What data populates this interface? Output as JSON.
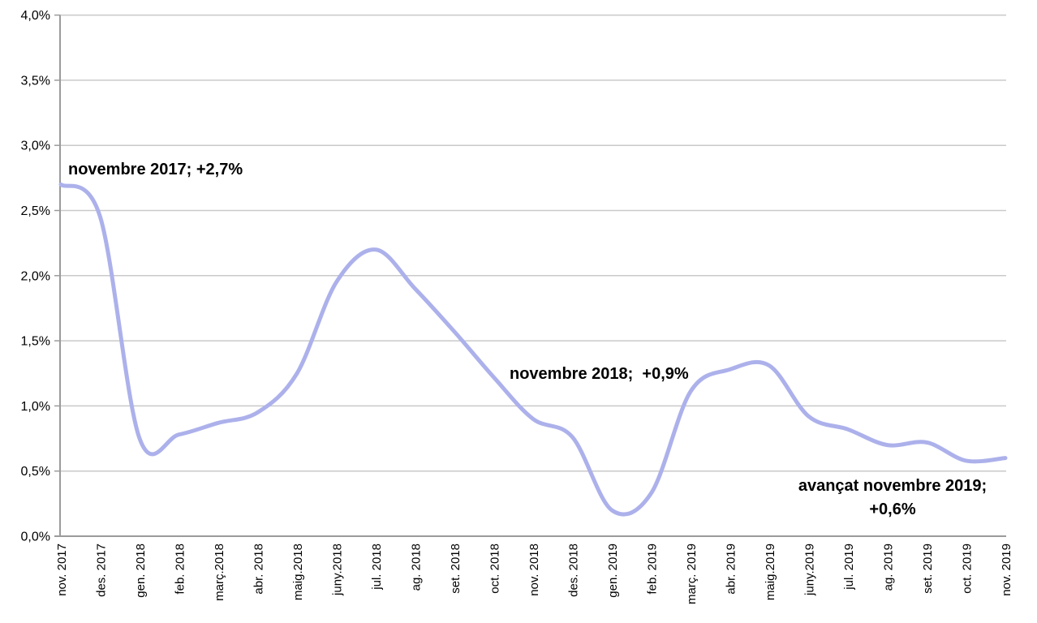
{
  "chart_data": {
    "type": "line",
    "title": "",
    "xlabel": "",
    "ylabel": "",
    "categories": [
      "nov. 2017",
      "des. 2017",
      "gen. 2018",
      "feb. 2018",
      "març.2018",
      "abr. 2018",
      "maig.2018",
      "juny.2018",
      "jul. 2018",
      "ag. 2018",
      "set. 2018",
      "oct. 2018",
      "nov. 2018",
      "des. 2018",
      "gen. 2019",
      "feb. 2019",
      "març. 2019",
      "abr. 2019",
      "maig.2019",
      "juny.2019",
      "jul. 2019",
      "ag. 2019",
      "set. 2019",
      "oct. 2019",
      "nov. 2019"
    ],
    "values": [
      2.7,
      2.45,
      0.75,
      0.78,
      0.87,
      0.95,
      1.25,
      1.95,
      2.2,
      1.9,
      1.57,
      1.22,
      0.9,
      0.76,
      0.2,
      0.33,
      1.11,
      1.28,
      1.31,
      0.92,
      0.82,
      0.7,
      0.72,
      0.58,
      0.6
    ],
    "ylim": [
      0,
      4
    ],
    "y_tick_step": 0.5,
    "y_tick_labels": [
      "4,0%",
      "3,5%",
      "3,0%",
      "2,5%",
      "2,0%",
      "1,5%",
      "1,0%",
      "0,5%",
      "0,0%"
    ],
    "grid": true,
    "legend": false,
    "line_color": "#acb1eb",
    "smooth": true,
    "annotations": {
      "nov2017": "novembre 2017; +2,7%",
      "nov2018": "novembre 2018;  +0,9%",
      "avancat2019": "avançat novembre 2019;\n+0,6%"
    }
  },
  "colors": {
    "grid": "#c9c9c9",
    "axis": "#9b9b9b",
    "text": "#000000",
    "background": "#ffffff"
  }
}
